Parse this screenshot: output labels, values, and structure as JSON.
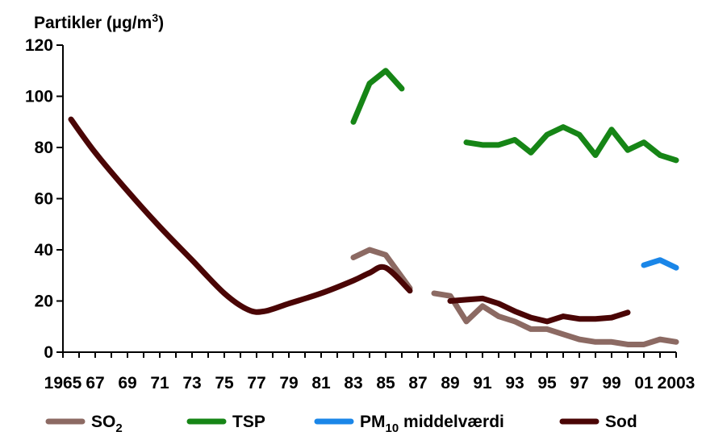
{
  "chart_data": {
    "type": "line",
    "title": "Partikler (µg/m³)",
    "title_parts": {
      "main": "Partikler (µg/m",
      "sup": "3",
      "close": ")"
    },
    "ylim": [
      0,
      120
    ],
    "yticks": [
      "0",
      "20",
      "40",
      "60",
      "80",
      "100",
      "120"
    ],
    "xlim": [
      1965,
      2003
    ],
    "xticks": [
      {
        "year": 1965,
        "label": "1965"
      },
      {
        "year": 1967,
        "label": "67"
      },
      {
        "year": 1969,
        "label": "69"
      },
      {
        "year": 1971,
        "label": "71"
      },
      {
        "year": 1973,
        "label": "73"
      },
      {
        "year": 1975,
        "label": "75"
      },
      {
        "year": 1977,
        "label": "77"
      },
      {
        "year": 1979,
        "label": "79"
      },
      {
        "year": 1981,
        "label": "81"
      },
      {
        "year": 1983,
        "label": "83"
      },
      {
        "year": 1985,
        "label": "85"
      },
      {
        "year": 1987,
        "label": "87"
      },
      {
        "year": 1989,
        "label": "89"
      },
      {
        "year": 1991,
        "label": "91"
      },
      {
        "year": 1993,
        "label": "93"
      },
      {
        "year": 1995,
        "label": "95"
      },
      {
        "year": 1997,
        "label": "97"
      },
      {
        "year": 1999,
        "label": "99"
      },
      {
        "year": 2001,
        "label": "01"
      },
      {
        "year": 2003,
        "label": "2003"
      }
    ],
    "series": [
      {
        "name": "SO2",
        "legend": {
          "main": "SO",
          "sub": "2",
          "rest": ""
        },
        "color": "#8c6a63",
        "segments": [
          [
            [
              1983,
              37
            ],
            [
              1984,
              40
            ],
            [
              1985,
              38
            ],
            [
              1986.5,
              25
            ]
          ],
          [
            [
              1988,
              23
            ],
            [
              1989,
              22
            ],
            [
              1990,
              12
            ],
            [
              1991,
              18
            ],
            [
              1992,
              14
            ],
            [
              1993,
              12
            ],
            [
              1994,
              9
            ],
            [
              1995,
              9
            ],
            [
              1996,
              7
            ],
            [
              1997,
              5
            ],
            [
              1998,
              4
            ],
            [
              1999,
              4
            ],
            [
              2000,
              3
            ],
            [
              2001,
              3
            ],
            [
              2002,
              5
            ],
            [
              2003,
              4
            ]
          ]
        ]
      },
      {
        "name": "TSP",
        "legend": {
          "main": "TSP",
          "sub": "",
          "rest": ""
        },
        "color": "#168516",
        "segments": [
          [
            [
              1983,
              90
            ],
            [
              1984,
              105
            ],
            [
              1985,
              110
            ],
            [
              1986,
              103
            ]
          ],
          [
            [
              1990,
              82
            ],
            [
              1991,
              81
            ],
            [
              1992,
              81
            ],
            [
              1993,
              83
            ],
            [
              1994,
              78
            ],
            [
              1995,
              85
            ],
            [
              1996,
              88
            ],
            [
              1997,
              85
            ],
            [
              1998,
              77
            ],
            [
              1999,
              87
            ],
            [
              2000,
              79
            ],
            [
              2001,
              82
            ],
            [
              2002,
              77
            ],
            [
              2003,
              75
            ]
          ]
        ]
      },
      {
        "name": "PM10 middelværdi",
        "legend": {
          "main": "PM",
          "sub": "10",
          "rest": " middelværdi"
        },
        "color": "#1a86e8",
        "segments": [
          [
            [
              2001,
              34
            ],
            [
              2002,
              36
            ],
            [
              2003,
              33
            ]
          ]
        ]
      },
      {
        "name": "Sod",
        "legend": {
          "main": "Sod",
          "sub": "",
          "rest": ""
        },
        "color": "#4a0505",
        "segments": [
          [
            [
              1965.5,
              91
            ],
            [
              1967,
              78
            ],
            [
              1969,
              63
            ],
            [
              1971,
              49
            ],
            [
              1973,
              36
            ],
            [
              1975,
              23
            ],
            [
              1976.5,
              16.5
            ],
            [
              1977.5,
              16
            ],
            [
              1979,
              19
            ],
            [
              1981,
              23
            ],
            [
              1983,
              28
            ],
            [
              1984,
              31
            ],
            [
              1985,
              33
            ],
            [
              1986.5,
              24
            ]
          ],
          [
            [
              1989,
              20
            ],
            [
              1990,
              20.5
            ],
            [
              1991,
              21
            ],
            [
              1992,
              19
            ],
            [
              1993,
              16
            ],
            [
              1994,
              13.5
            ],
            [
              1995,
              12
            ],
            [
              1996,
              14
            ],
            [
              1997,
              13
            ],
            [
              1998,
              13
            ],
            [
              1999,
              13.5
            ],
            [
              2000,
              15.5
            ]
          ]
        ]
      }
    ],
    "legend_position": "bottom"
  }
}
